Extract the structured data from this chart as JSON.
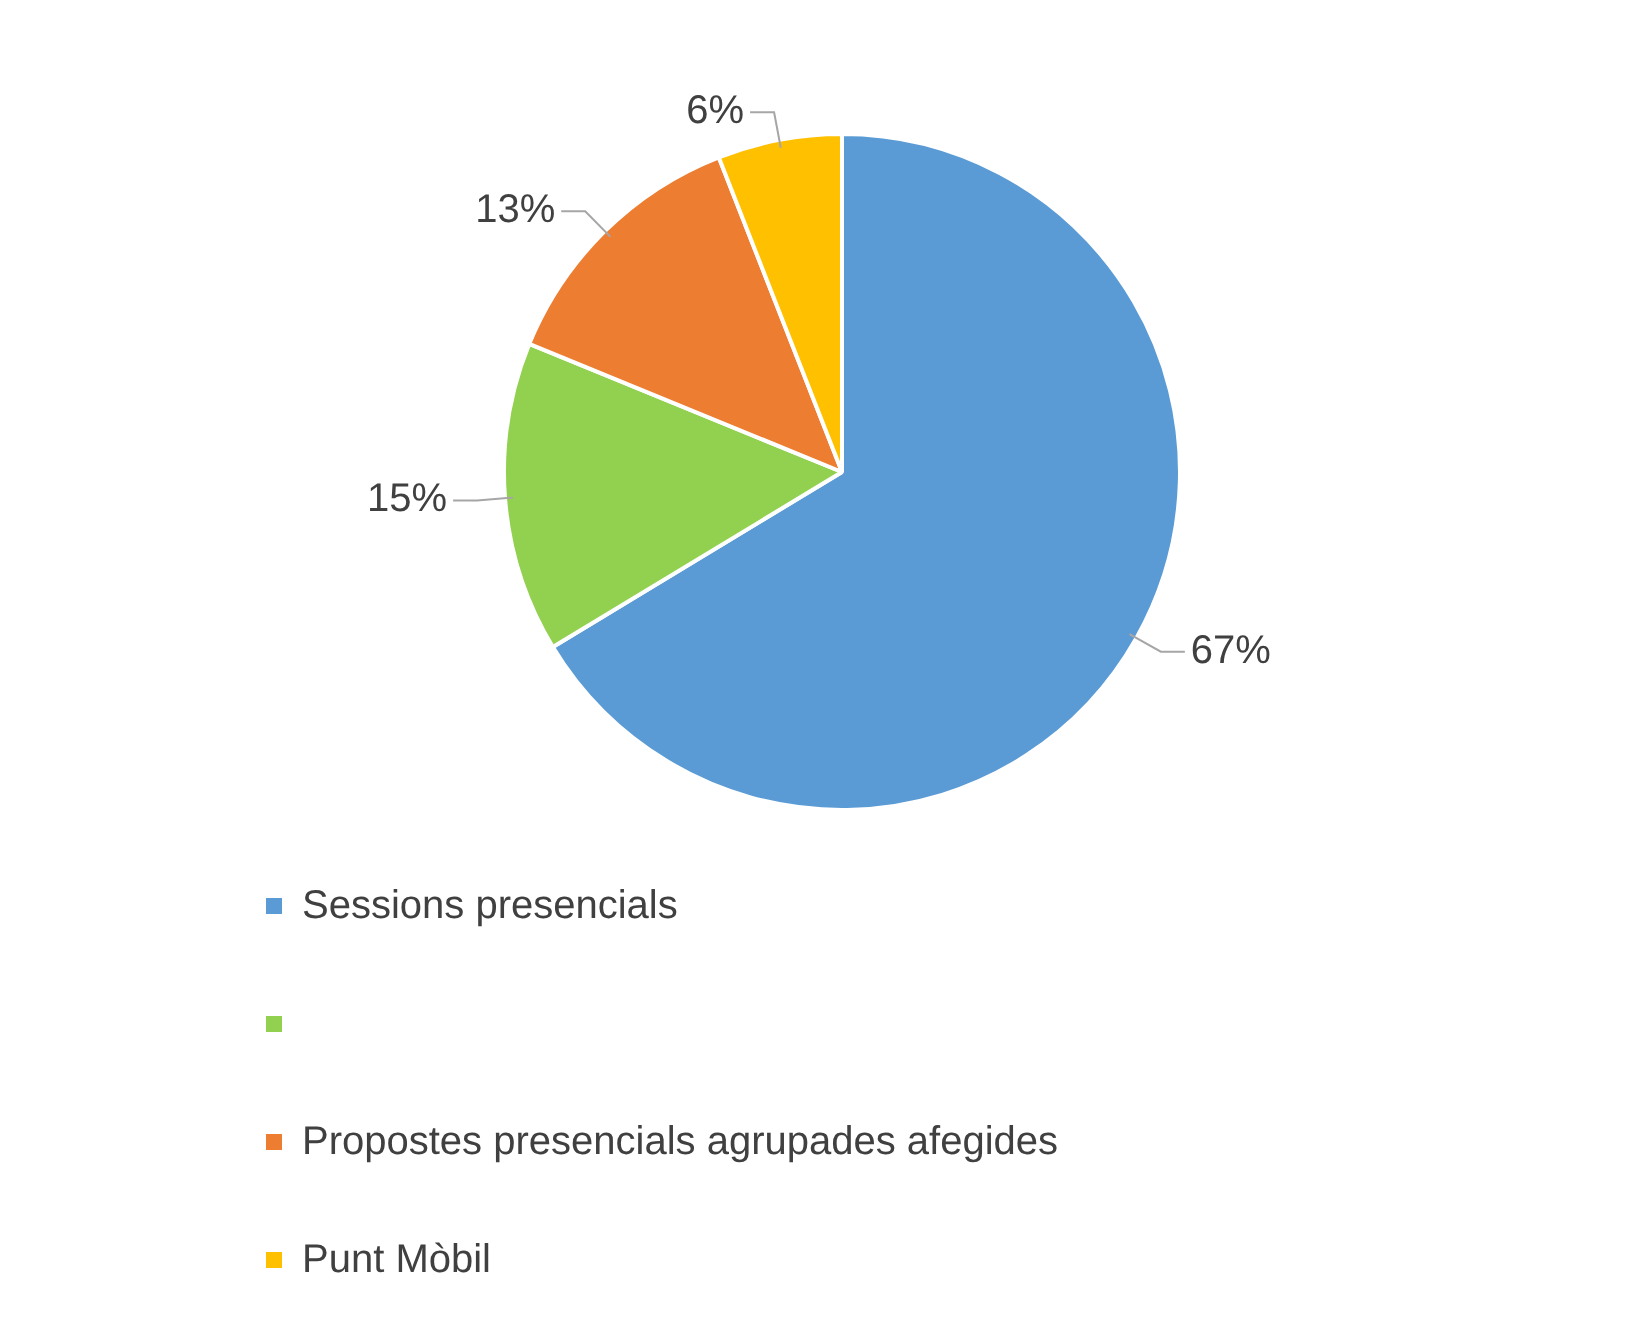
{
  "chart_data": {
    "type": "pie",
    "categories": [
      "Sessions presencials",
      null,
      "Propostes presencials agrupades afegides",
      "Punt Mòbil"
    ],
    "values": [
      67,
      15,
      13,
      6
    ],
    "colors": [
      "#5b9bd5",
      "#92d050",
      "#ed7d31",
      "#ffc000"
    ],
    "value_labels": [
      "67%",
      "15%",
      "13%",
      "6%"
    ],
    "legend": "bottom"
  }
}
